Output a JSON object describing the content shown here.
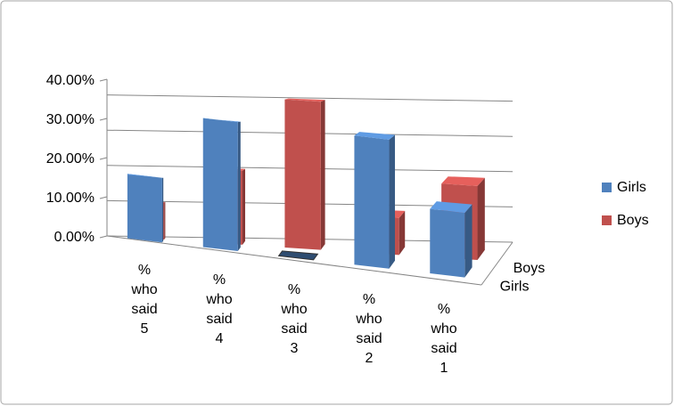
{
  "chart_data": {
    "type": "bar3d",
    "categories": [
      "% who said 5",
      "% who said 4",
      "% who said 3",
      "% who said 2",
      "% who said 1"
    ],
    "series": [
      {
        "name": "Girls",
        "color": "#4f81bd",
        "values": [
          16.67,
          33.33,
          0,
          33.33,
          16.67
        ]
      },
      {
        "name": "Boys",
        "color": "#c0504d",
        "values": [
          10,
          20,
          40,
          10,
          20
        ]
      }
    ],
    "ylim": [
      0,
      40
    ],
    "yticks": [
      {
        "value": 0,
        "label": "0.00%"
      },
      {
        "value": 10,
        "label": "10.00%"
      },
      {
        "value": 20,
        "label": "20.00%"
      },
      {
        "value": 30,
        "label": "30.00%"
      },
      {
        "value": 40,
        "label": "40.00%"
      }
    ],
    "grid": true,
    "legend": "right"
  }
}
